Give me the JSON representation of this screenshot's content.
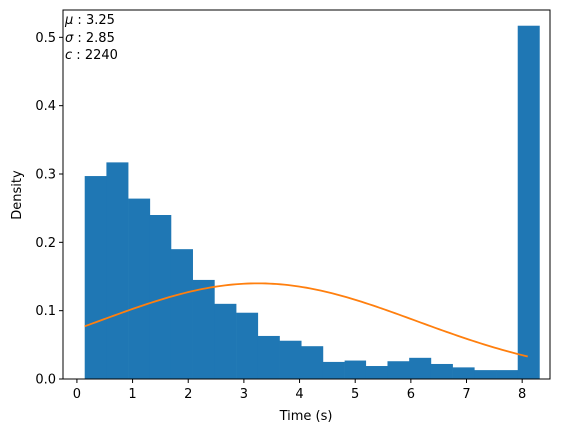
{
  "chart_data": {
    "type": "bar",
    "xlabel": "Time (s)",
    "ylabel": "Density",
    "xlim": [
      -0.25,
      8.5
    ],
    "ylim": [
      0,
      0.54
    ],
    "xticks": [
      0,
      1,
      2,
      3,
      4,
      5,
      6,
      7,
      8
    ],
    "yticks": [
      0.0,
      0.1,
      0.2,
      0.3,
      0.4,
      0.5
    ],
    "bins": [
      {
        "x0": 0.14,
        "x1": 0.53,
        "value": 0.297
      },
      {
        "x0": 0.53,
        "x1": 0.92,
        "value": 0.317
      },
      {
        "x0": 0.92,
        "x1": 1.31,
        "value": 0.264
      },
      {
        "x0": 1.31,
        "x1": 1.69,
        "value": 0.24
      },
      {
        "x0": 1.69,
        "x1": 2.08,
        "value": 0.19
      },
      {
        "x0": 2.08,
        "x1": 2.47,
        "value": 0.145
      },
      {
        "x0": 2.47,
        "x1": 2.86,
        "value": 0.11
      },
      {
        "x0": 2.86,
        "x1": 3.25,
        "value": 0.097
      },
      {
        "x0": 3.25,
        "x1": 3.64,
        "value": 0.063
      },
      {
        "x0": 3.64,
        "x1": 4.03,
        "value": 0.056
      },
      {
        "x0": 4.03,
        "x1": 4.42,
        "value": 0.048
      },
      {
        "x0": 4.42,
        "x1": 4.81,
        "value": 0.025
      },
      {
        "x0": 4.81,
        "x1": 5.19,
        "value": 0.027
      },
      {
        "x0": 5.19,
        "x1": 5.58,
        "value": 0.019
      },
      {
        "x0": 5.58,
        "x1": 5.97,
        "value": 0.026
      },
      {
        "x0": 5.97,
        "x1": 6.36,
        "value": 0.031
      },
      {
        "x0": 6.36,
        "x1": 6.75,
        "value": 0.022
      },
      {
        "x0": 6.75,
        "x1": 7.14,
        "value": 0.017
      },
      {
        "x0": 7.14,
        "x1": 7.53,
        "value": 0.013
      },
      {
        "x0": 7.53,
        "x1": 7.92,
        "value": 0.013
      },
      {
        "x0": 7.92,
        "x1": 8.31,
        "value": 0.517
      }
    ],
    "curve": {
      "kind": "normal-pdf",
      "mu": 3.25,
      "sigma": 2.85,
      "x_range": [
        0.14,
        8.1
      ],
      "color": "#ff7f0e"
    },
    "bar_color": "#1f77b4",
    "stats": {
      "mu_label": "μ",
      "mu_value": "3.25",
      "sigma_label": "σ",
      "sigma_value": "2.85",
      "c_label": "c",
      "c_value": "2240"
    },
    "grid": false,
    "legend": "none"
  }
}
